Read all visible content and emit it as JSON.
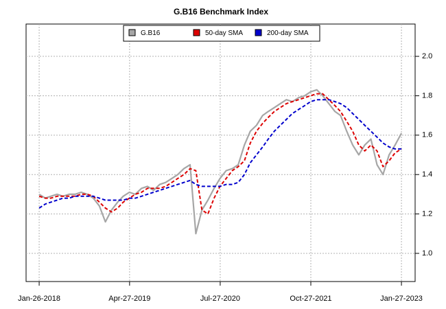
{
  "chart_data": {
    "type": "line",
    "title": "G.B16 Benchmark Index",
    "x": [
      "2018-01-26",
      "2018-02-26",
      "2018-03-26",
      "2018-04-26",
      "2018-05-26",
      "2018-06-26",
      "2018-07-26",
      "2018-08-26",
      "2018-09-26",
      "2018-10-26",
      "2018-11-26",
      "2018-12-26",
      "2019-01-26",
      "2019-02-26",
      "2019-03-26",
      "2019-04-26",
      "2019-05-26",
      "2019-06-26",
      "2019-07-26",
      "2019-08-26",
      "2019-09-26",
      "2019-10-26",
      "2019-11-26",
      "2019-12-26",
      "2020-01-26",
      "2020-02-26",
      "2020-03-26",
      "2020-04-26",
      "2020-05-26",
      "2020-06-26",
      "2020-07-26",
      "2020-08-26",
      "2020-09-26",
      "2020-10-26",
      "2020-11-26",
      "2020-12-26",
      "2021-01-26",
      "2021-02-26",
      "2021-03-26",
      "2021-04-26",
      "2021-05-26",
      "2021-06-26",
      "2021-07-26",
      "2021-08-26",
      "2021-09-26",
      "2021-10-26",
      "2021-11-26",
      "2021-12-26",
      "2022-01-26",
      "2022-02-26",
      "2022-03-26",
      "2022-04-26",
      "2022-05-26",
      "2022-06-26",
      "2022-07-26",
      "2022-08-26",
      "2022-09-26",
      "2022-10-26",
      "2022-11-26",
      "2022-12-26",
      "2023-01-27"
    ],
    "series": [
      {
        "name": "G.B16",
        "color": "#a6a6a6",
        "dash": false,
        "values": [
          1.3,
          1.28,
          1.29,
          1.3,
          1.29,
          1.3,
          1.3,
          1.31,
          1.3,
          1.28,
          1.24,
          1.16,
          1.22,
          1.26,
          1.29,
          1.31,
          1.3,
          1.33,
          1.34,
          1.32,
          1.35,
          1.36,
          1.38,
          1.4,
          1.43,
          1.45,
          1.1,
          1.22,
          1.27,
          1.33,
          1.38,
          1.42,
          1.43,
          1.45,
          1.55,
          1.62,
          1.65,
          1.7,
          1.72,
          1.74,
          1.76,
          1.78,
          1.77,
          1.79,
          1.8,
          1.82,
          1.83,
          1.8,
          1.76,
          1.72,
          1.7,
          1.62,
          1.55,
          1.5,
          1.55,
          1.58,
          1.45,
          1.4,
          1.5,
          1.55,
          1.61
        ]
      },
      {
        "name": "50-day SMA",
        "color": "#dd0000",
        "dash": true,
        "values": [
          1.29,
          1.28,
          1.28,
          1.29,
          1.29,
          1.29,
          1.29,
          1.3,
          1.3,
          1.29,
          1.26,
          1.23,
          1.21,
          1.23,
          1.26,
          1.28,
          1.3,
          1.31,
          1.33,
          1.33,
          1.33,
          1.34,
          1.36,
          1.38,
          1.4,
          1.43,
          1.42,
          1.22,
          1.2,
          1.28,
          1.34,
          1.38,
          1.42,
          1.44,
          1.47,
          1.56,
          1.62,
          1.66,
          1.69,
          1.72,
          1.74,
          1.76,
          1.77,
          1.78,
          1.79,
          1.8,
          1.81,
          1.81,
          1.78,
          1.75,
          1.72,
          1.67,
          1.62,
          1.55,
          1.52,
          1.55,
          1.52,
          1.44,
          1.47,
          1.51,
          1.53
        ]
      },
      {
        "name": "200-day SMA",
        "color": "#0000cc",
        "dash": true,
        "values": [
          1.23,
          1.25,
          1.26,
          1.27,
          1.28,
          1.28,
          1.29,
          1.29,
          1.29,
          1.29,
          1.28,
          1.27,
          1.27,
          1.27,
          1.27,
          1.28,
          1.28,
          1.29,
          1.3,
          1.31,
          1.32,
          1.33,
          1.34,
          1.35,
          1.36,
          1.37,
          1.35,
          1.34,
          1.34,
          1.34,
          1.34,
          1.35,
          1.35,
          1.36,
          1.4,
          1.46,
          1.5,
          1.54,
          1.58,
          1.62,
          1.65,
          1.68,
          1.71,
          1.73,
          1.75,
          1.77,
          1.78,
          1.78,
          1.78,
          1.77,
          1.76,
          1.74,
          1.71,
          1.68,
          1.65,
          1.62,
          1.59,
          1.56,
          1.54,
          1.53,
          1.53
        ]
      }
    ],
    "xlim": [
      "2017-11-21",
      "2023-04-06"
    ],
    "xticks": [
      {
        "value": "2018-01-26",
        "label": "Jan-26-2018"
      },
      {
        "value": "2019-04-27",
        "label": "Apr-27-2019"
      },
      {
        "value": "2020-07-27",
        "label": "Jul-27-2020"
      },
      {
        "value": "2021-10-27",
        "label": "Oct-27-2021"
      },
      {
        "value": "2023-01-27",
        "label": "Jan-27-2023"
      }
    ],
    "ylim": [
      0.857,
      2.164
    ],
    "yticks": [
      {
        "value": 1,
        "label": "1.0"
      },
      1.2,
      1.4,
      1.6,
      1.8,
      {
        "value": 2,
        "label": "2.0"
      }
    ],
    "grid": true,
    "legend": "top"
  }
}
